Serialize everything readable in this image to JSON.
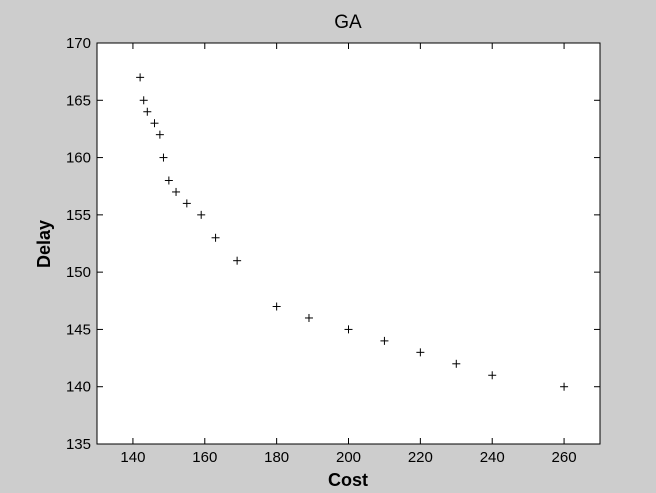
{
  "chart_data": {
    "type": "scatter",
    "title": "GA",
    "xlabel": "Cost",
    "ylabel": "Delay",
    "xlim": [
      130,
      270
    ],
    "ylim": [
      135,
      170
    ],
    "xticks": [
      140,
      160,
      180,
      200,
      220,
      240,
      260
    ],
    "yticks": [
      135,
      140,
      145,
      150,
      155,
      160,
      165,
      170
    ],
    "xtick_labels": [
      "140",
      "160",
      "180",
      "200",
      "220",
      "240",
      "260"
    ],
    "ytick_labels": [
      "135",
      "140",
      "145",
      "150",
      "155",
      "160",
      "165",
      "170"
    ],
    "marker": "+",
    "grid": false,
    "series": [
      {
        "points": [
          [
            142,
            167
          ],
          [
            143,
            165
          ],
          [
            144,
            164
          ],
          [
            146,
            163
          ],
          [
            147.5,
            162
          ],
          [
            148.5,
            160
          ],
          [
            150,
            158
          ],
          [
            152,
            157
          ],
          [
            155,
            156
          ],
          [
            159,
            155
          ],
          [
            163,
            153
          ],
          [
            169,
            151
          ],
          [
            180,
            147
          ],
          [
            189,
            146
          ],
          [
            200,
            145
          ],
          [
            210,
            144
          ],
          [
            220,
            143
          ],
          [
            230,
            142
          ],
          [
            240,
            141
          ],
          [
            260,
            140
          ]
        ]
      }
    ]
  }
}
